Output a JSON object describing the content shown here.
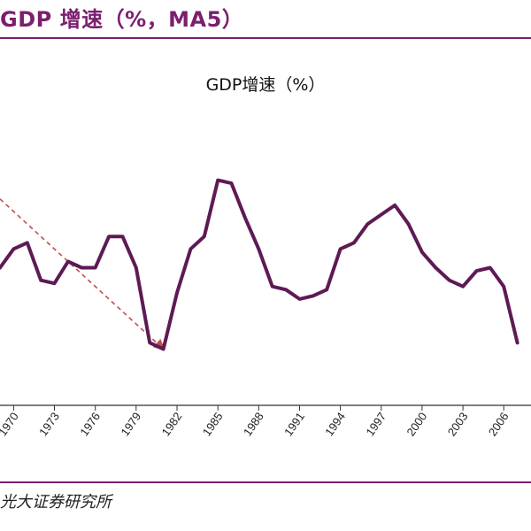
{
  "header": {
    "title": "GDP 增速（%，MA5）"
  },
  "colors": {
    "accent": "#7b1f6e",
    "line": "#5e1a55",
    "trend_arrow": "#c0504d",
    "axis": "#333333",
    "gridline": "#d9d9d9"
  },
  "chart_data": {
    "type": "line",
    "title": "GDP增速（%）",
    "xlabel": "",
    "ylabel": "",
    "x_tick_labels": [
      "1970",
      "1973",
      "1976",
      "1979",
      "1982",
      "1985",
      "1988",
      "1991",
      "1994",
      "1997",
      "2000",
      "2003",
      "2006"
    ],
    "x": [
      1969,
      1970,
      1971,
      1972,
      1973,
      1974,
      1975,
      1976,
      1977,
      1978,
      1979,
      1980,
      1981,
      1982,
      1983,
      1984,
      1985,
      1986,
      1987,
      1988,
      1989,
      1990,
      1991,
      1992,
      1993,
      1994,
      1995,
      1996,
      1997,
      1998,
      1999,
      2000,
      2001,
      2002,
      2003,
      2004,
      2005,
      2006,
      2007
    ],
    "series": [
      {
        "values": [
          4.2,
          4.5,
          4.6,
          4.0,
          3.95,
          4.3,
          4.2,
          4.2,
          4.7,
          4.7,
          4.2,
          3.0,
          2.9,
          3.8,
          4.5,
          4.7,
          5.6,
          5.55,
          5.0,
          4.5,
          3.9,
          3.85,
          3.7,
          3.75,
          3.85,
          4.5,
          4.6,
          4.9,
          5.05,
          5.2,
          4.9,
          4.45,
          4.2,
          4.0,
          3.9,
          4.15,
          4.2,
          3.9,
          3.0
        ]
      }
    ],
    "annotations": [
      {
        "type": "dashed-arrow",
        "from": {
          "x": 1969,
          "y": 5.3
        },
        "to": {
          "x": 1981,
          "y": 2.9
        }
      }
    ],
    "xlim": [
      1969,
      2008
    ],
    "ylim": [
      2.0,
      6.5
    ],
    "grid": false,
    "legend": "none"
  },
  "source": {
    "text": "光大证券研究所"
  }
}
